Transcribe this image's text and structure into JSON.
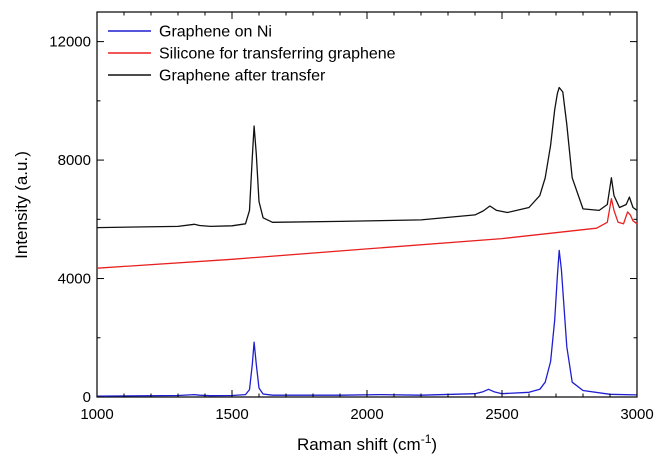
{
  "chart_data": {
    "type": "line",
    "xlabel": "Raman shift (cm",
    "xlabel_sup": "-1",
    "xlabel_end": ")",
    "ylabel": "Intensity (a.u.)",
    "xlim": [
      1000,
      3000
    ],
    "ylim": [
      0,
      13000
    ],
    "x_ticks": [
      1000,
      1500,
      2000,
      2500,
      3000
    ],
    "x_tick_labels": [
      "1000",
      "1500",
      "2000",
      "2500",
      "3000"
    ],
    "y_ticks": [
      0,
      4000,
      8000,
      12000
    ],
    "y_tick_labels": [
      "0",
      "4000",
      "8000",
      "12000"
    ],
    "grid": false,
    "legend_position": "top-left",
    "series": [
      {
        "name": "Graphene on Ni",
        "color": "#1f1fd1",
        "x": [
          1000,
          1300,
          1360,
          1380,
          1420,
          1500,
          1550,
          1565,
          1575,
          1582,
          1590,
          1600,
          1615,
          1650,
          1900,
          2050,
          2200,
          2400,
          2430,
          2450,
          2470,
          2500,
          2600,
          2640,
          2660,
          2680,
          2695,
          2705,
          2712,
          2720,
          2740,
          2760,
          2800,
          2900,
          3000
        ],
        "y": [
          30,
          50,
          80,
          60,
          45,
          50,
          80,
          250,
          1100,
          1850,
          1100,
          300,
          100,
          60,
          60,
          80,
          60,
          110,
          180,
          260,
          180,
          110,
          160,
          260,
          500,
          1200,
          2600,
          4100,
          4950,
          4300,
          1700,
          500,
          220,
          90,
          70
        ]
      },
      {
        "name": "Silicone for transferring graphene",
        "color": "#e8201f",
        "x": [
          1000,
          1500,
          2000,
          2500,
          2850,
          2890,
          2905,
          2915,
          2930,
          2950,
          2965,
          2975,
          2985,
          3000
        ],
        "y": [
          4350,
          4650,
          5000,
          5350,
          5700,
          5900,
          6700,
          6300,
          5900,
          5850,
          6250,
          6150,
          5950,
          5850
        ]
      },
      {
        "name": "Graphene after transfer",
        "color": "#111111",
        "x": [
          1000,
          1300,
          1360,
          1380,
          1420,
          1500,
          1550,
          1565,
          1575,
          1582,
          1590,
          1600,
          1615,
          1650,
          1900,
          2200,
          2400,
          2430,
          2455,
          2480,
          2520,
          2600,
          2640,
          2660,
          2680,
          2695,
          2705,
          2712,
          2725,
          2740,
          2760,
          2800,
          2860,
          2890,
          2905,
          2915,
          2935,
          2960,
          2972,
          2985,
          3000
        ],
        "y": [
          5720,
          5760,
          5830,
          5790,
          5760,
          5780,
          5850,
          6300,
          8100,
          9150,
          8200,
          6600,
          6050,
          5900,
          5930,
          5980,
          6150,
          6280,
          6450,
          6300,
          6230,
          6400,
          6800,
          7400,
          8500,
          9700,
          10250,
          10450,
          10300,
          9200,
          7400,
          6350,
          6300,
          6500,
          7400,
          6800,
          6400,
          6500,
          6750,
          6400,
          6300
        ]
      }
    ]
  }
}
